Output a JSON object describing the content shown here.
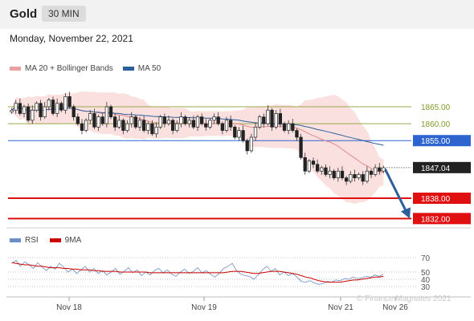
{
  "header": {
    "symbol": "Gold",
    "timeframe": "30 MIN",
    "date": "Monday, November 22, 2021"
  },
  "legend_main": [
    {
      "label": "MA 20 + Bollinger Bands",
      "color": "#e8a0a0"
    },
    {
      "label": "MA 50",
      "color": "#2d5f9a"
    }
  ],
  "legend_rsi": [
    {
      "label": "RSI",
      "color": "#6c8ec4"
    },
    {
      "label": "9MA",
      "color": "#cc0000"
    }
  ],
  "watermark": "© Finance Magnates 2021",
  "chart_data": [
    {
      "type": "candlestick",
      "x_ticks": [
        "Nov 18",
        "Nov 19",
        "Nov 21",
        "Nov 26"
      ],
      "ylim": [
        1829,
        1874
      ],
      "current_price": "1847.04",
      "levels": [
        {
          "value": 1865.0,
          "label": "1865.00",
          "color": "#9aa84a",
          "role": "resistance"
        },
        {
          "value": 1860.0,
          "label": "1860.00",
          "color": "#9aa84a",
          "role": "resistance"
        },
        {
          "value": 1855.0,
          "label": "1855.00",
          "color": "#2e64d0",
          "role": "pivot"
        },
        {
          "value": 1838.0,
          "label": "1838.00",
          "color": "#e01010",
          "role": "support"
        },
        {
          "value": 1832.0,
          "label": "1832.00",
          "color": "#e01010",
          "role": "support"
        }
      ],
      "closes": [
        1864,
        1866,
        1863,
        1865,
        1861,
        1864,
        1866,
        1862,
        1865,
        1867,
        1863,
        1866,
        1864,
        1868,
        1865,
        1862,
        1860,
        1858,
        1861,
        1863,
        1859,
        1862,
        1860,
        1865,
        1862,
        1859,
        1861,
        1858,
        1860,
        1862,
        1859,
        1861,
        1858,
        1860,
        1857,
        1859,
        1862,
        1860,
        1861,
        1858,
        1860,
        1862,
        1860,
        1861,
        1859,
        1862,
        1860,
        1859,
        1861,
        1862,
        1860,
        1858,
        1861,
        1859,
        1856,
        1858,
        1855,
        1852,
        1856,
        1859,
        1862,
        1860,
        1864,
        1859,
        1863,
        1860,
        1858,
        1860,
        1858,
        1856,
        1850,
        1846,
        1849,
        1848,
        1846,
        1847,
        1845,
        1846,
        1844,
        1846,
        1844,
        1843,
        1845,
        1844,
        1845,
        1843,
        1846,
        1845,
        1847,
        1846,
        1847
      ],
      "trend_projection": {
        "from": 1847.04,
        "to": 1832.0
      }
    },
    {
      "type": "line",
      "title": "RSI",
      "ylim": [
        20,
        80
      ],
      "yticks": [
        70,
        50,
        40,
        30
      ],
      "series": [
        {
          "name": "RSI",
          "values": [
            62,
            66,
            58,
            64,
            60,
            55,
            63,
            57,
            52,
            58,
            54,
            62,
            57,
            50,
            54,
            48,
            53,
            58,
            50,
            55,
            48,
            52,
            46,
            50,
            55,
            47,
            51,
            56,
            49,
            53,
            45,
            50,
            46,
            52,
            55,
            49,
            53,
            47,
            44,
            50,
            54,
            48,
            51,
            56,
            49,
            52,
            47,
            43,
            48,
            55,
            58,
            62,
            52,
            47,
            45,
            44,
            40,
            46,
            53,
            58,
            51,
            55,
            46,
            50,
            45,
            48,
            43,
            37,
            36,
            38,
            35,
            33,
            34,
            37,
            36,
            39,
            38,
            41,
            40,
            43,
            41,
            42,
            44,
            43,
            46,
            44,
            47
          ]
        },
        {
          "name": "9MA",
          "values": [
            63,
            62,
            61,
            60,
            60,
            59,
            58,
            58,
            57,
            56,
            56,
            56,
            55,
            55,
            54,
            54,
            53,
            53,
            53,
            52,
            52,
            51,
            51,
            51,
            51,
            50,
            50,
            50,
            50,
            50,
            50,
            50,
            49,
            49,
            49,
            49,
            49,
            49,
            49,
            49,
            49,
            49,
            49,
            49,
            49,
            49,
            49,
            49,
            49,
            49,
            50,
            51,
            51,
            51,
            50,
            49,
            48,
            48,
            49,
            50,
            51,
            51,
            51,
            50,
            49,
            48,
            47,
            45,
            43,
            42,
            40,
            38,
            37,
            36,
            36,
            36,
            36,
            37,
            38,
            39,
            39,
            40,
            41,
            42,
            43,
            43,
            44
          ]
        }
      ]
    }
  ]
}
